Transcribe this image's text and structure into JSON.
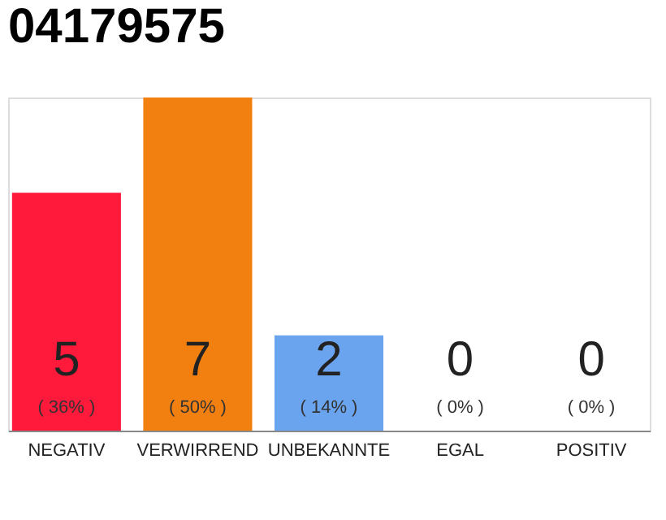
{
  "chart_data": {
    "type": "bar",
    "title": "04179575",
    "categories": [
      "NEGATIV",
      "VERWIRREND",
      "UNBEKANNTE",
      "EGAL",
      "POSITIV"
    ],
    "values": [
      5,
      7,
      2,
      0,
      0
    ],
    "colors": [
      "#ff1a3c",
      "#f28010",
      "#6aa3ee",
      "#cccccc",
      "#cccccc"
    ],
    "data_labels": true,
    "annotations": [
      "( 36% )",
      "( 50% )",
      "( 14% )",
      "( 0% )",
      "( 0% )"
    ],
    "tick_labels": "x",
    "grid": false
  }
}
